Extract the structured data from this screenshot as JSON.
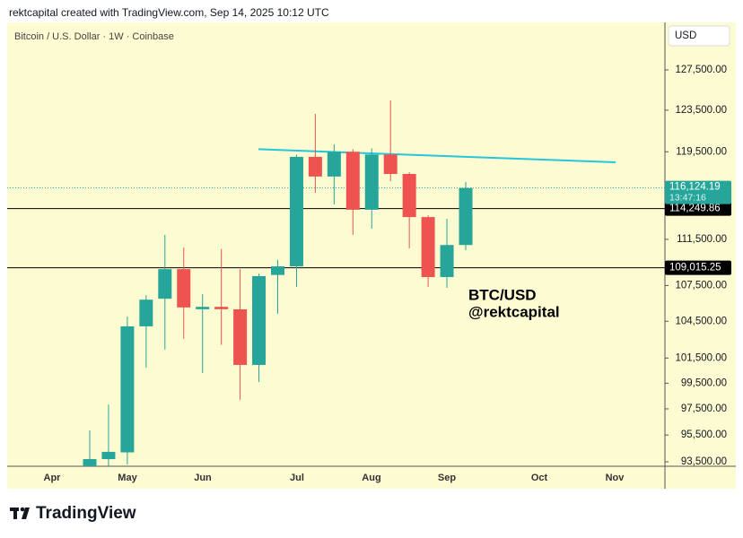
{
  "header": "rektcapital created with TradingView.com, Sep 14, 2025 10:12 UTC",
  "chart_data": {
    "type": "candlestick",
    "title": "Bitcoin / U.S. Dollar · 1W · Coinbase",
    "currency": "USD",
    "log_scale": true,
    "up_color": "#26a69a",
    "down_color": "#ef5350",
    "ylim": [
      93170,
      132380
    ],
    "yticks": [
      {
        "value": 93500,
        "label": "93,500.00"
      },
      {
        "value": 95500,
        "label": "95,500.00"
      },
      {
        "value": 97500,
        "label": "97,500.00"
      },
      {
        "value": 99500,
        "label": "99,500.00"
      },
      {
        "value": 101500,
        "label": "101,500.00"
      },
      {
        "value": 104500,
        "label": "104,500.00"
      },
      {
        "value": 107500,
        "label": "107,500.00"
      },
      {
        "value": 111500,
        "label": "111,500.00"
      },
      {
        "value": 119500,
        "label": "119,500.00"
      },
      {
        "value": 123500,
        "label": "123,500.00"
      },
      {
        "value": 127500,
        "label": "127,500.00"
      }
    ],
    "month_labels": [
      "Apr",
      "May",
      "Jun",
      "Jul",
      "Aug",
      "Sep",
      "Oct",
      "Nov"
    ],
    "categories": [
      null,
      null,
      null,
      null,
      null,
      null,
      null,
      null,
      null,
      null,
      null,
      null,
      null,
      null,
      null,
      null,
      null,
      null,
      null,
      null,
      null
    ],
    "candles": [
      {
        "open": 93170,
        "high": 95860,
        "low": 92800,
        "close": 93700
      },
      {
        "open": 93700,
        "high": 97840,
        "low": 93170,
        "close": 94240
      },
      {
        "open": 94200,
        "high": 104900,
        "low": 93300,
        "close": 104080
      },
      {
        "open": 104080,
        "high": 106680,
        "low": 100720,
        "close": 106300
      },
      {
        "open": 106380,
        "high": 111900,
        "low": 102180,
        "close": 108900
      },
      {
        "open": 108900,
        "high": 110790,
        "low": 103060,
        "close": 105650
      },
      {
        "open": 105500,
        "high": 106760,
        "low": 100300,
        "close": 105700
      },
      {
        "open": 105700,
        "high": 110660,
        "low": 102560,
        "close": 105500
      },
      {
        "open": 105490,
        "high": 108900,
        "low": 98200,
        "close": 100950
      },
      {
        "open": 100950,
        "high": 108520,
        "low": 99590,
        "close": 108300
      },
      {
        "open": 108400,
        "high": 109700,
        "low": 105120,
        "close": 109140
      },
      {
        "open": 109140,
        "high": 119240,
        "low": 107380,
        "close": 119020
      },
      {
        "open": 119020,
        "high": 123140,
        "low": 115680,
        "close": 117180
      },
      {
        "open": 117180,
        "high": 120210,
        "low": 114620,
        "close": 119500
      },
      {
        "open": 119500,
        "high": 119740,
        "low": 111900,
        "close": 114140
      },
      {
        "open": 114140,
        "high": 119820,
        "low": 112450,
        "close": 119240
      },
      {
        "open": 119240,
        "high": 124460,
        "low": 116750,
        "close": 117420
      },
      {
        "open": 117420,
        "high": 117580,
        "low": 110710,
        "close": 113480
      },
      {
        "open": 113480,
        "high": 113640,
        "low": 107380,
        "close": 108220
      },
      {
        "open": 108220,
        "high": 113330,
        "low": 107300,
        "close": 111000
      },
      {
        "open": 111000,
        "high": 116680,
        "low": 110550,
        "close": 116124.19
      }
    ],
    "levels": [
      {
        "value": 114249.86,
        "label": "114,249.86"
      },
      {
        "value": 109015.25,
        "label": "109,015.25"
      }
    ],
    "level_color": "#000000",
    "last_price": {
      "value": 116124.19,
      "label": "116,124.19"
    },
    "countdown": "13:47:16",
    "trendline": {
      "values": [
        119740,
        118510
      ],
      "color": "#26c6da"
    },
    "annotation": [
      "BTC/USD",
      "@rektcapital"
    ]
  },
  "footer": {
    "logo": "TradingView"
  }
}
